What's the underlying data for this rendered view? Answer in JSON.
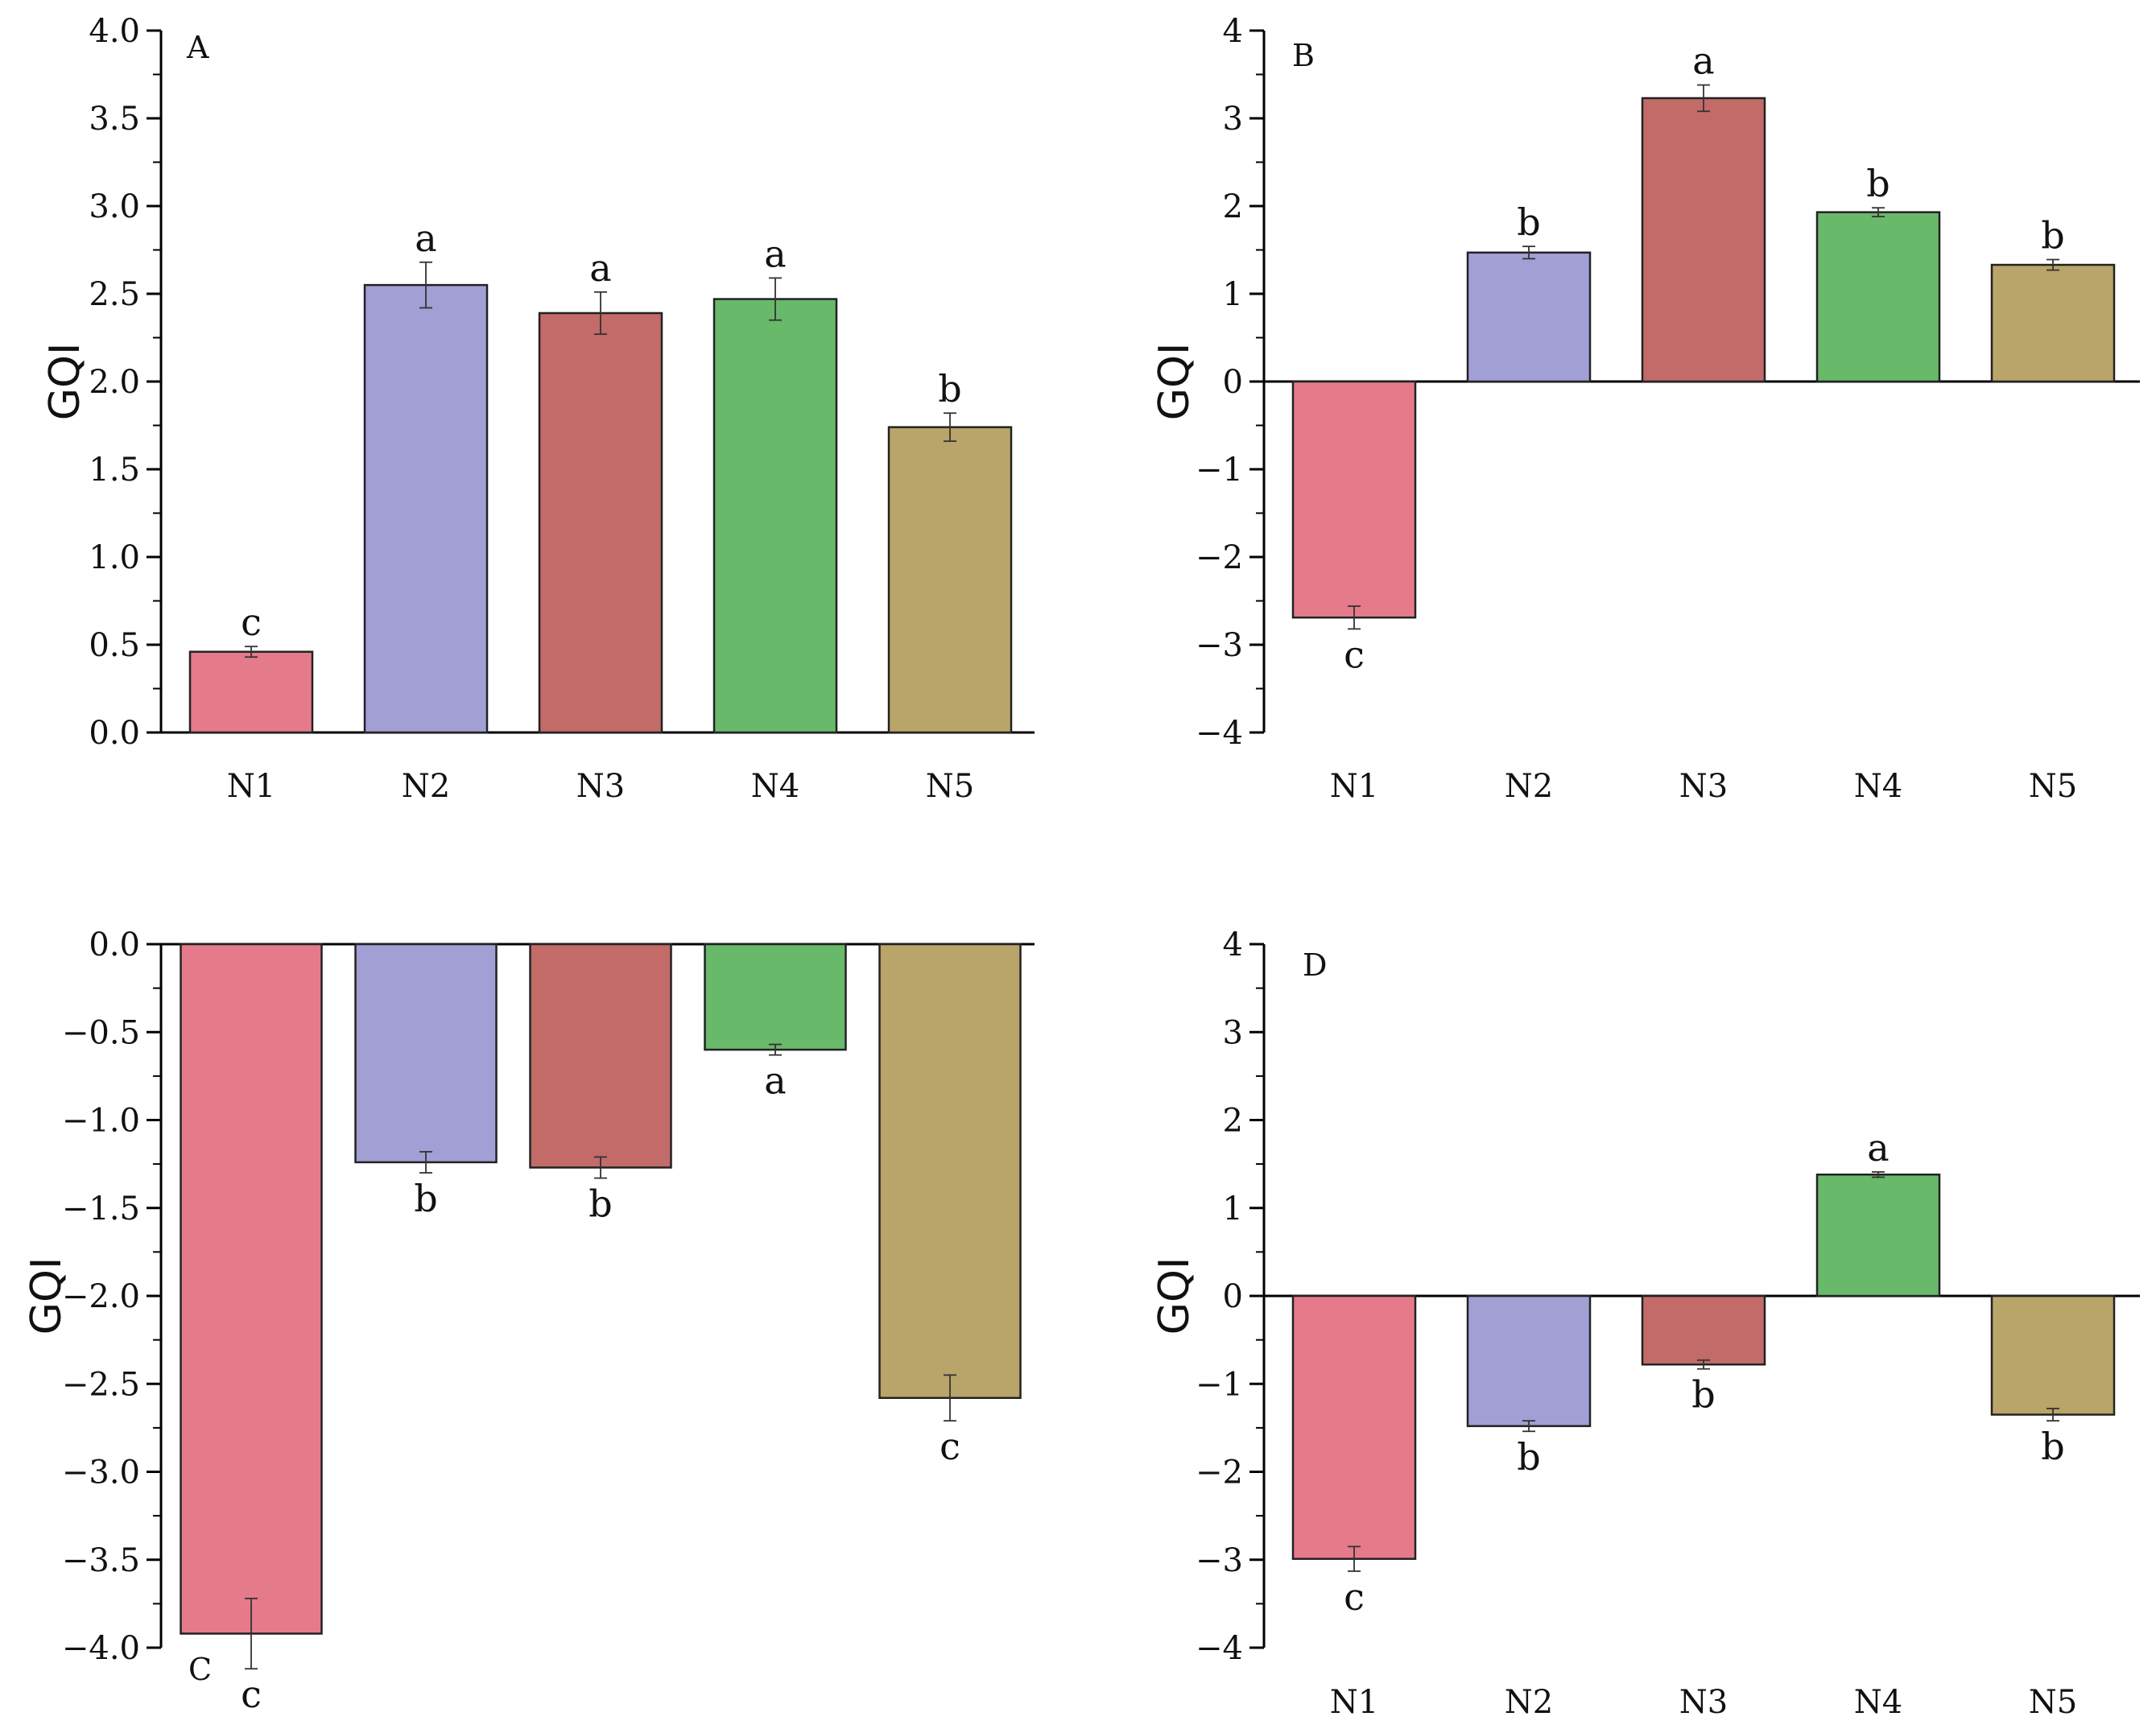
{
  "figure": {
    "categories": [
      "N1",
      "N2",
      "N3",
      "N4",
      "N5"
    ],
    "colors": {
      "N1": "#E57A8A",
      "N2": "#A29FD5",
      "N3": "#C26B69",
      "N4": "#68B96A",
      "N5": "#B9A46A"
    }
  },
  "chart_data": [
    {
      "type": "bar",
      "panel": "A",
      "ylabel": "GQI",
      "categories": [
        "N1",
        "N2",
        "N3",
        "N4",
        "N5"
      ],
      "values": [
        0.46,
        2.55,
        2.39,
        2.47,
        1.74
      ],
      "errors": [
        0.03,
        0.13,
        0.12,
        0.12,
        0.08
      ],
      "significance": [
        "c",
        "a",
        "a",
        "a",
        "b"
      ],
      "ylim": [
        0.0,
        4.0
      ],
      "yticks": [
        "0.0",
        "0.5",
        "1.0",
        "1.5",
        "2.0",
        "2.5",
        "3.0",
        "3.5",
        "4.0"
      ],
      "show_category_labels": true
    },
    {
      "type": "bar",
      "panel": "B",
      "ylabel": "GQI",
      "categories": [
        "N1",
        "N2",
        "N3",
        "N4",
        "N5"
      ],
      "values": [
        -2.69,
        1.47,
        3.23,
        1.93,
        1.33
      ],
      "errors": [
        0.13,
        0.07,
        0.15,
        0.05,
        0.06
      ],
      "significance": [
        "c",
        "b",
        "a",
        "b",
        "b"
      ],
      "ylim": [
        -4,
        4
      ],
      "yticks": [
        "−4",
        "−3",
        "−2",
        "−1",
        "0",
        "1",
        "2",
        "3",
        "4"
      ],
      "show_category_labels": true
    },
    {
      "type": "bar",
      "panel": "C",
      "ylabel": "GQI",
      "categories": [
        "N1",
        "N2",
        "N3",
        "N4",
        "N5"
      ],
      "values": [
        -3.92,
        -1.24,
        -1.27,
        -0.6,
        -2.58
      ],
      "errors": [
        0.2,
        0.06,
        0.06,
        0.03,
        0.13
      ],
      "significance": [
        "c",
        "b",
        "b",
        "a",
        "c"
      ],
      "ylim": [
        -4.0,
        0.0
      ],
      "yticks": [
        "−4.0",
        "−3.5",
        "−3.0",
        "−2.5",
        "−2.0",
        "−1.5",
        "−1.0",
        "−0.5",
        "0.0"
      ],
      "show_category_labels": false
    },
    {
      "type": "bar",
      "panel": "D",
      "ylabel": "GQI",
      "categories": [
        "N1",
        "N2",
        "N3",
        "N4",
        "N5"
      ],
      "values": [
        -2.99,
        -1.48,
        -0.78,
        1.38,
        -1.35
      ],
      "errors": [
        0.14,
        0.06,
        0.05,
        0.03,
        0.07
      ],
      "significance": [
        "c",
        "b",
        "b",
        "a",
        "b"
      ],
      "ylim": [
        -4,
        4
      ],
      "yticks": [
        "−4",
        "−3",
        "−2",
        "−1",
        "0",
        "1",
        "2",
        "3",
        "4"
      ],
      "show_category_labels": true
    }
  ]
}
